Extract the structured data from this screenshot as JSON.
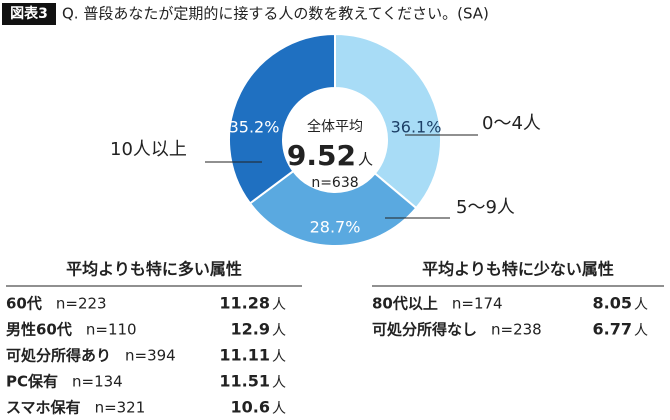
{
  "chart_data": {
    "type": "pie",
    "badge": "図表3",
    "title": "Q. 普段あなたが定期的に接する人の数を教えてください。(SA)",
    "categories": [
      "0〜4人",
      "5〜9人",
      "10人以上"
    ],
    "values": [
      36.1,
      28.7,
      35.2
    ],
    "value_labels": [
      "36.1%",
      "28.7%",
      "35.2%"
    ],
    "colors": [
      "#a8dcf6",
      "#5aa9e0",
      "#1f70c1"
    ],
    "center": {
      "label": "全体平均",
      "value": "9.52",
      "unit": "人",
      "n": "n=638"
    }
  },
  "tables": [
    {
      "title": "平均よりも特に多い属性",
      "rows": [
        [
          "60代",
          "n=223",
          "11.28",
          "人"
        ],
        [
          "男性60代",
          "n=110",
          "12.9",
          "人"
        ],
        [
          "可処分所得あり",
          "n=394",
          "11.11",
          "人"
        ],
        [
          "PC保有",
          "n=134",
          "11.51",
          "人"
        ],
        [
          "スマホ保有",
          "n=321",
          "10.6",
          "人"
        ]
      ]
    },
    {
      "title": "平均よりも特に少ない属性",
      "rows": [
        [
          "80代以上",
          "n=174",
          "8.05",
          "人"
        ],
        [
          "可処分所得なし",
          "n=238",
          "6.77",
          "人"
        ]
      ]
    }
  ]
}
